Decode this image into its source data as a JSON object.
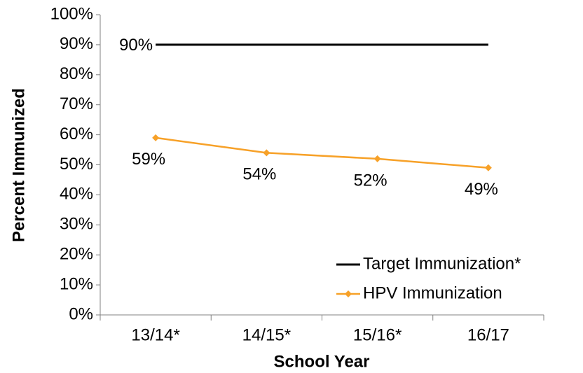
{
  "chart_data": {
    "type": "line",
    "x_label": "School Year",
    "y_label": "Percent Immunized",
    "categories": [
      "13/14*",
      "14/15*",
      "15/16*",
      "16/17"
    ],
    "series": [
      {
        "name": "Target Immunization*",
        "color": "#000000",
        "marker": "none",
        "values": [
          90,
          90,
          90,
          90
        ],
        "value_labels": [
          "90%",
          null,
          null,
          null
        ]
      },
      {
        "name": "HPV Immunization",
        "color": "#f7a128",
        "marker": "diamond",
        "values": [
          59,
          54,
          52,
          49
        ],
        "value_labels": [
          "59%",
          "54%",
          "52%",
          "49%"
        ]
      }
    ],
    "ylim": [
      0,
      100
    ],
    "yticks": [
      {
        "value": 0,
        "label": "0%"
      },
      {
        "value": 10,
        "label": "10%"
      },
      {
        "value": 20,
        "label": "20%"
      },
      {
        "value": 30,
        "label": "30%"
      },
      {
        "value": 40,
        "label": "40%"
      },
      {
        "value": 50,
        "label": "50%"
      },
      {
        "value": 60,
        "label": "60%"
      },
      {
        "value": 70,
        "label": "70%"
      },
      {
        "value": 80,
        "label": "80%"
      },
      {
        "value": 90,
        "label": "90%"
      },
      {
        "value": 100,
        "label": "100%"
      }
    ],
    "grid": false,
    "legend": "lower right"
  }
}
